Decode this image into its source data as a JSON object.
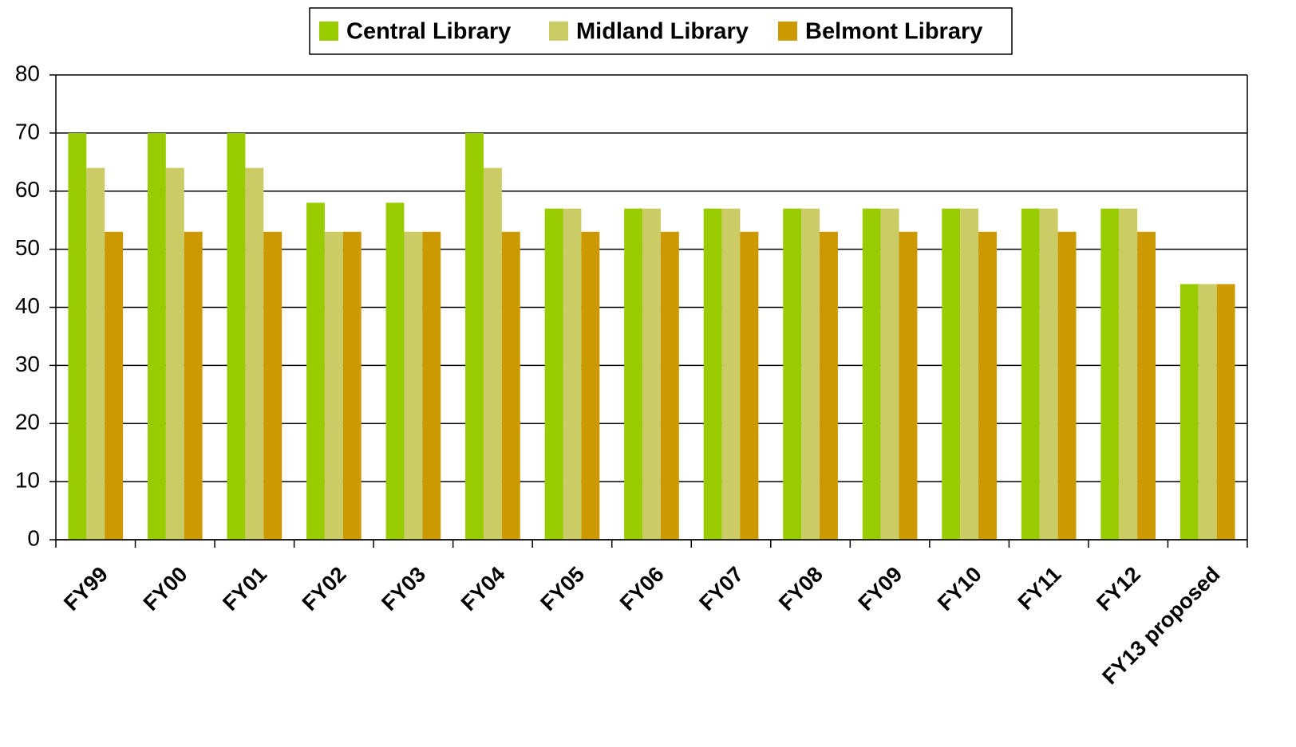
{
  "chart_data": {
    "type": "bar",
    "categories": [
      "FY99",
      "FY00",
      "FY01",
      "FY02",
      "FY03",
      "FY04",
      "FY05",
      "FY06",
      "FY07",
      "FY08",
      "FY09",
      "FY10",
      "FY11",
      "FY12",
      "FY13 proposed"
    ],
    "series": [
      {
        "name": "Central Library",
        "color": "#99cc00",
        "values": [
          70,
          70,
          70,
          58,
          58,
          70,
          57,
          57,
          57,
          57,
          57,
          57,
          57,
          57,
          44
        ]
      },
      {
        "name": "Midland Library",
        "color": "#cccc66",
        "values": [
          64,
          64,
          64,
          53,
          53,
          64,
          57,
          57,
          57,
          57,
          57,
          57,
          57,
          57,
          44
        ]
      },
      {
        "name": "Belmont Library",
        "color": "#cc9900",
        "values": [
          53,
          53,
          53,
          53,
          53,
          53,
          53,
          53,
          53,
          53,
          53,
          53,
          53,
          53,
          44
        ]
      }
    ],
    "ylim": [
      0,
      80
    ],
    "yticks": [
      0,
      10,
      20,
      30,
      40,
      50,
      60,
      70,
      80
    ],
    "grid": true,
    "legend": "top"
  }
}
